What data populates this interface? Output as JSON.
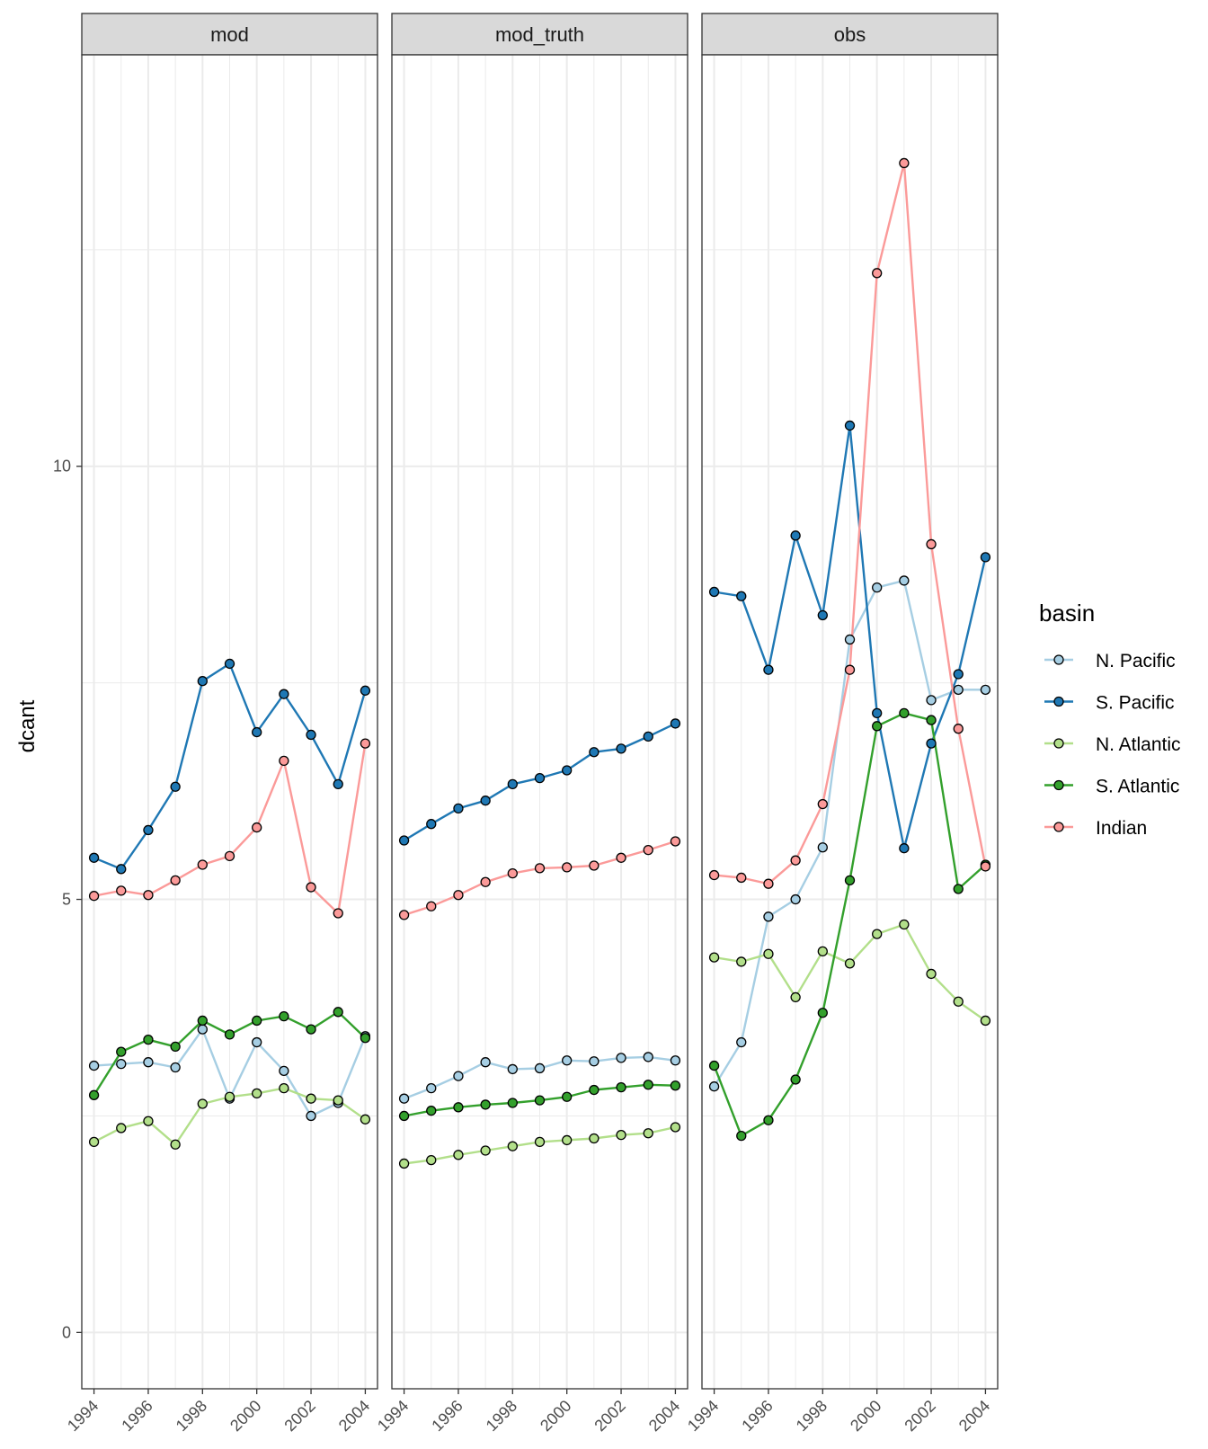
{
  "chart_data": {
    "type": "line",
    "facets": [
      "mod",
      "mod_truth",
      "obs"
    ],
    "x": [
      1994,
      1995,
      1996,
      1997,
      1998,
      1999,
      2000,
      2001,
      2002,
      2003,
      2004
    ],
    "x_tick_labels": [
      "1994",
      "1996",
      "1998",
      "2000",
      "2002",
      "2004"
    ],
    "xlim": [
      1993.55,
      2004.45
    ],
    "ylabel": "dcant",
    "y_tick_labels": [
      "0",
      "5",
      "10"
    ],
    "ylim": [
      -0.65,
      14.75
    ],
    "grid": true,
    "legend": {
      "title": "basin",
      "position": "right"
    },
    "series": [
      {
        "name": "N. Pacific",
        "color": "#a6cee3",
        "values": {
          "mod": [
            3.08,
            3.1,
            3.12,
            3.06,
            3.5,
            2.7,
            3.35,
            3.02,
            2.5,
            2.65,
            3.42
          ],
          "mod_truth": [
            2.7,
            2.82,
            2.96,
            3.12,
            3.04,
            3.05,
            3.14,
            3.13,
            3.17,
            3.18,
            3.14
          ],
          "obs": [
            2.84,
            3.35,
            4.8,
            5.0,
            5.6,
            8.0,
            8.6,
            8.68,
            7.3,
            7.42,
            7.42
          ]
        }
      },
      {
        "name": "S. Pacific",
        "color": "#1f78b4",
        "values": {
          "mod": [
            5.48,
            5.35,
            5.8,
            6.3,
            7.52,
            7.72,
            6.93,
            7.37,
            6.9,
            6.33,
            7.41
          ],
          "mod_truth": [
            5.68,
            5.87,
            6.05,
            6.14,
            6.33,
            6.4,
            6.49,
            6.7,
            6.74,
            6.88,
            7.03
          ],
          "obs": [
            8.55,
            8.5,
            7.65,
            9.2,
            8.28,
            10.47,
            7.15,
            5.59,
            6.8,
            7.6,
            8.95
          ]
        }
      },
      {
        "name": "N. Atlantic",
        "color": "#b2df8a",
        "values": {
          "mod": [
            2.2,
            2.36,
            2.44,
            2.17,
            2.64,
            2.72,
            2.76,
            2.82,
            2.7,
            2.68,
            2.46
          ],
          "mod_truth": [
            1.95,
            1.99,
            2.05,
            2.1,
            2.15,
            2.2,
            2.22,
            2.24,
            2.28,
            2.3,
            2.37
          ],
          "obs": [
            4.33,
            4.28,
            4.37,
            3.87,
            4.4,
            4.26,
            4.6,
            4.71,
            4.14,
            3.82,
            3.6
          ]
        }
      },
      {
        "name": "S. Atlantic",
        "color": "#33a02c",
        "values": {
          "mod": [
            2.74,
            3.24,
            3.38,
            3.3,
            3.6,
            3.44,
            3.6,
            3.65,
            3.5,
            3.7,
            3.4
          ],
          "mod_truth": [
            2.5,
            2.56,
            2.6,
            2.63,
            2.65,
            2.68,
            2.72,
            2.8,
            2.83,
            2.86,
            2.85
          ],
          "obs": [
            3.08,
            2.27,
            2.45,
            2.92,
            3.69,
            5.22,
            7.0,
            7.15,
            7.07,
            5.12,
            5.4
          ]
        }
      },
      {
        "name": "Indian",
        "color": "#fb9a99",
        "values": {
          "mod": [
            5.04,
            5.1,
            5.05,
            5.22,
            5.4,
            5.5,
            5.83,
            6.6,
            5.14,
            4.84,
            6.8
          ],
          "mod_truth": [
            4.82,
            4.92,
            5.05,
            5.2,
            5.3,
            5.36,
            5.37,
            5.39,
            5.48,
            5.57,
            5.67
          ],
          "obs": [
            5.28,
            5.25,
            5.18,
            5.45,
            6.1,
            7.65,
            12.23,
            13.5,
            9.1,
            6.97,
            5.38
          ]
        }
      }
    ]
  }
}
